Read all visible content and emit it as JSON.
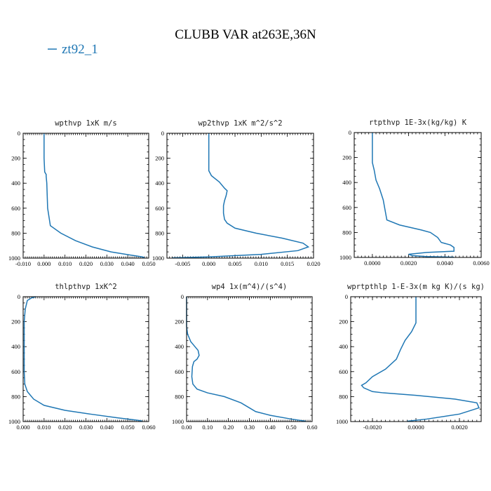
{
  "figure": {
    "title": "CLUBB VAR at263E,36N",
    "legend": "zt92_1",
    "line_color": "#1f77b4"
  },
  "chart_data": [
    {
      "type": "line",
      "title": "wpthvp  1xK m/s",
      "xlim": [
        -0.01,
        0.05
      ],
      "xticks": [
        -0.01,
        0.0,
        0.01,
        0.02,
        0.03,
        0.04,
        0.05
      ],
      "xtick_labels": [
        "-0.010",
        "0.000",
        "0.010",
        "0.020",
        "0.030",
        "0.040",
        "0.050"
      ],
      "ylim": [
        1000,
        0
      ],
      "yticks": [
        0,
        200,
        400,
        600,
        800,
        1000
      ],
      "ytick_labels": [
        "0",
        "200",
        "400",
        "600",
        "800",
        "1000"
      ],
      "series": [
        {
          "x": [
            0.0,
            0.0,
            0.0003,
            0.001,
            0.001,
            0.0013,
            0.0015,
            0.0017,
            0.003,
            0.008,
            0.015,
            0.023,
            0.032,
            0.041,
            0.047,
            0.048
          ],
          "y": [
            0,
            200,
            310,
            330,
            345,
            400,
            500,
            600,
            740,
            800,
            860,
            910,
            950,
            975,
            990,
            997
          ]
        }
      ]
    },
    {
      "type": "line",
      "title": "wp2thvp  1xK m^2/s^2",
      "xlim": [
        -0.008,
        0.02
      ],
      "xticks": [
        -0.005,
        0.0,
        0.005,
        0.01,
        0.015,
        0.02
      ],
      "xtick_labels": [
        "-0.005",
        "0.000",
        "0.005",
        "0.010",
        "0.015",
        "0.020"
      ],
      "ylim": [
        1000,
        0
      ],
      "yticks": [
        0,
        200,
        400,
        600,
        800,
        1000
      ],
      "ytick_labels": [
        "0",
        "200",
        "400",
        "600",
        "800",
        "1000"
      ],
      "series": [
        {
          "x": [
            0.0,
            0.0,
            0.0005,
            0.002,
            0.003,
            0.0035,
            0.0033,
            0.003,
            0.0028,
            0.0028,
            0.003,
            0.0035,
            0.005,
            0.009,
            0.014,
            0.018,
            0.019,
            0.017,
            0.01,
            0.0,
            -0.007
          ],
          "y": [
            0,
            300,
            340,
            390,
            440,
            460,
            500,
            540,
            580,
            640,
            690,
            720,
            760,
            800,
            840,
            880,
            910,
            940,
            970,
            990,
            998
          ]
        }
      ]
    },
    {
      "type": "line",
      "title": "rtpthvp  1E-3x(kg/kg) K",
      "xlim": [
        -0.001,
        0.006
      ],
      "xticks": [
        0.0,
        0.002,
        0.004,
        0.006
      ],
      "xtick_labels": [
        "0.0000",
        "0.0020",
        "0.0040",
        "0.0060"
      ],
      "ylim": [
        1000,
        0
      ],
      "yticks": [
        0,
        200,
        400,
        600,
        800,
        1000
      ],
      "ytick_labels": [
        "0",
        "200",
        "400",
        "600",
        "800",
        "1000"
      ],
      "series": [
        {
          "x": [
            0.0,
            0.0,
            0.0001,
            0.0002,
            0.0004,
            0.0006,
            0.0008,
            0.0015,
            0.0027,
            0.0032,
            0.0036,
            0.0038,
            0.0043,
            0.0045,
            0.0045,
            0.003,
            0.002,
            0.0022,
            0.003,
            0.0045
          ],
          "y": [
            0,
            240,
            300,
            380,
            450,
            540,
            700,
            740,
            780,
            800,
            840,
            880,
            900,
            920,
            950,
            960,
            975,
            985,
            993,
            998
          ]
        }
      ]
    },
    {
      "type": "line",
      "title": "thlpthvp  1xK^2",
      "xlim": [
        0.0,
        0.06
      ],
      "xticks": [
        0.0,
        0.01,
        0.02,
        0.03,
        0.04,
        0.05,
        0.06
      ],
      "xtick_labels": [
        "0.000",
        "0.010",
        "0.020",
        "0.030",
        "0.040",
        "0.050",
        "0.060"
      ],
      "ylim": [
        1000,
        0
      ],
      "yticks": [
        0,
        200,
        400,
        600,
        800,
        1000
      ],
      "ytick_labels": [
        "0",
        "200",
        "400",
        "600",
        "800",
        "1000"
      ],
      "series": [
        {
          "x": [
            0.006,
            0.004,
            0.002,
            0.001,
            0.0005,
            0.0005,
            0.0008,
            0.002,
            0.005,
            0.01,
            0.02,
            0.032,
            0.045,
            0.055,
            0.057
          ],
          "y": [
            0,
            10,
            30,
            100,
            200,
            600,
            700,
            760,
            820,
            870,
            910,
            940,
            970,
            990,
            997
          ]
        }
      ]
    },
    {
      "type": "line",
      "title": "wp4  1x(m^4)/(s^4)",
      "xlim": [
        0.0,
        0.6
      ],
      "xticks": [
        0.0,
        0.1,
        0.2,
        0.3,
        0.4,
        0.5,
        0.6
      ],
      "xtick_labels": [
        "0.00",
        "0.10",
        "0.20",
        "0.30",
        "0.40",
        "0.50",
        "0.60"
      ],
      "ylim": [
        1000,
        0
      ],
      "yticks": [
        0,
        200,
        400,
        600,
        800,
        1000
      ],
      "ytick_labels": [
        "0",
        "200",
        "400",
        "600",
        "800",
        "1000"
      ],
      "series": [
        {
          "x": [
            0.0,
            0.0,
            0.005,
            0.02,
            0.04,
            0.055,
            0.06,
            0.05,
            0.035,
            0.028,
            0.025,
            0.03,
            0.05,
            0.1,
            0.18,
            0.26,
            0.3,
            0.33,
            0.4,
            0.5,
            0.57
          ],
          "y": [
            0,
            240,
            300,
            360,
            400,
            430,
            470,
            500,
            520,
            560,
            640,
            700,
            740,
            770,
            800,
            850,
            890,
            920,
            950,
            980,
            997
          ]
        }
      ]
    },
    {
      "type": "line",
      "title": "wprtpthlp  1-E-3x(m kg K)/(s kg)",
      "xlim": [
        -0.003,
        0.003
      ],
      "xticks": [
        -0.002,
        0.0,
        0.002
      ],
      "xtick_labels": [
        "-0.0020",
        "0.0000",
        "0.0020"
      ],
      "ylim": [
        1000,
        0
      ],
      "yticks": [
        0,
        200,
        400,
        600,
        800,
        1000
      ],
      "ytick_labels": [
        "0",
        "200",
        "400",
        "600",
        "800",
        "1000"
      ],
      "series": [
        {
          "x": [
            0.0,
            0.0,
            -0.0002,
            -0.0005,
            -0.0007,
            -0.0009,
            -0.0014,
            -0.002,
            -0.0023,
            -0.0025,
            -0.0024,
            -0.002,
            -0.0015,
            0.0,
            0.0018,
            0.0028,
            0.0029,
            0.002,
            0.0005,
            -0.0004
          ],
          "y": [
            0,
            210,
            280,
            350,
            420,
            500,
            580,
            640,
            690,
            710,
            730,
            760,
            770,
            790,
            820,
            850,
            890,
            940,
            980,
            997
          ]
        }
      ]
    }
  ]
}
